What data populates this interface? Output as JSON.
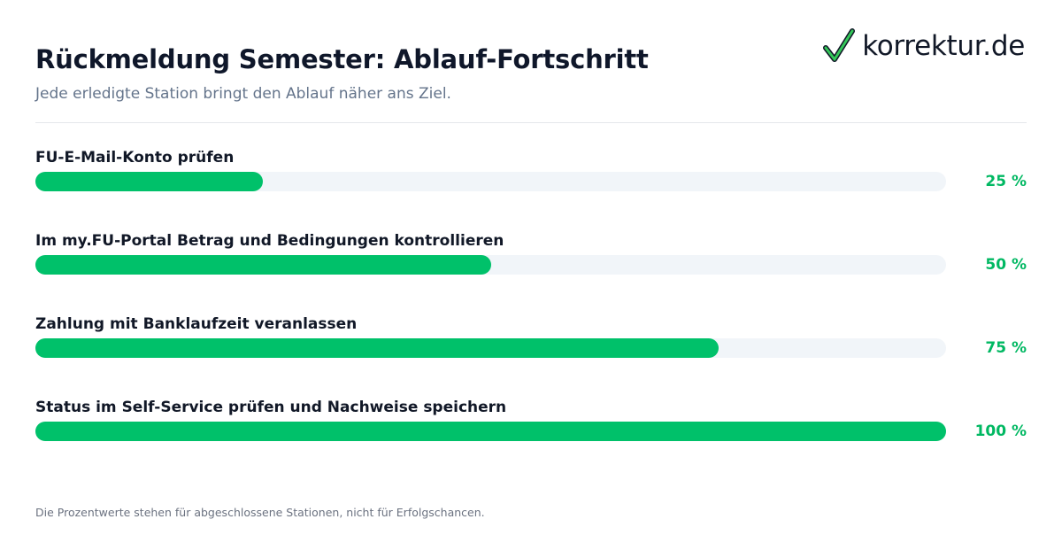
{
  "header": {
    "title": "Rückmeldung Semester: Ablauf-Fortschritt",
    "subtitle": "Jede erledigte Station bringt den Ablauf näher ans Ziel."
  },
  "logo": {
    "text": "korrektur.de",
    "icon": "checkmark-icon",
    "check_color": "#34c759"
  },
  "colors": {
    "bar_fill": "#00c16a",
    "bar_track": "#f1f5f9",
    "percent_text": "#00b862"
  },
  "chart_data": {
    "type": "bar",
    "orientation": "horizontal",
    "categories": [
      "FU-E-Mail-Konto prüfen",
      "Im my.FU-Portal Betrag und Bedingungen kontrollieren",
      "Zahlung mit Banklaufzeit veranlassen",
      "Status im Self-Service prüfen und Nachweise speichern"
    ],
    "values": [
      25,
      50,
      75,
      100
    ],
    "value_labels": [
      "25 %",
      "50 %",
      "75 %",
      "100 %"
    ],
    "xlim": [
      0,
      100
    ],
    "grid": false
  },
  "footer": {
    "note": "Die Prozentwerte stehen für abgeschlossene Stationen, nicht für Erfolgschancen."
  }
}
